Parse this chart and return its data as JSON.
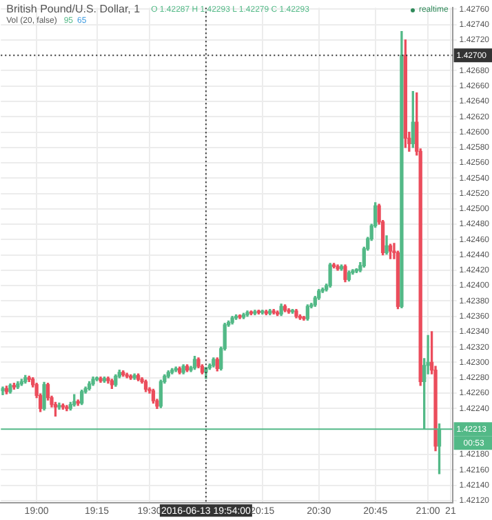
{
  "chart_data": {
    "type": "candlestick",
    "title": "British Pound/U.S. Dollar, 1",
    "annotations": [
      "O 1.42287 H 1.42293 L 1.42279 C 1.42293",
      "Vol (20, false)",
      "95",
      "65",
      "realtime",
      "00:53"
    ],
    "categories": [
      null,
      null,
      null,
      null,
      null,
      null,
      null,
      null,
      null,
      "19:00",
      null,
      null,
      null,
      null,
      null,
      null,
      null,
      null,
      null,
      null,
      null,
      null,
      null,
      null,
      null,
      "19:15",
      null,
      null,
      null,
      null,
      null,
      null,
      null,
      null,
      null,
      null,
      null,
      null,
      null,
      "19:30",
      null,
      null,
      null,
      null,
      null,
      null,
      null,
      null,
      null,
      null,
      null,
      null,
      null,
      null,
      "2016-06-13 19:54:00",
      null,
      null,
      null,
      null,
      null,
      null,
      null,
      null,
      null,
      null,
      null,
      null,
      null,
      null,
      "20:15",
      null,
      null,
      null,
      null,
      null,
      null,
      null,
      null,
      null,
      null,
      null,
      null,
      null,
      null,
      "20:30",
      null,
      null,
      null,
      null,
      null,
      null,
      null,
      null,
      null,
      null,
      null,
      null,
      null,
      null,
      "20:45",
      null,
      null,
      null,
      null,
      null,
      null,
      null,
      null,
      null,
      null,
      null,
      null,
      null,
      "21:00",
      null,
      null,
      null,
      null,
      null,
      "21"
    ],
    "ohlc": [
      [
        1.42263,
        1.42268,
        1.42258,
        1.42266
      ],
      [
        1.42266,
        1.42269,
        1.42259,
        1.42262
      ],
      [
        1.42262,
        1.42272,
        1.4226,
        1.4227
      ],
      [
        1.4227,
        1.42273,
        1.42265,
        1.42268
      ],
      [
        1.42268,
        1.42275,
        1.42266,
        1.42272
      ],
      [
        1.42272,
        1.42278,
        1.4227,
        1.42275
      ],
      [
        1.42275,
        1.42283,
        1.42273,
        1.4228
      ],
      [
        1.4228,
        1.42282,
        1.42275,
        1.42278
      ],
      [
        1.42278,
        1.4228,
        1.42268,
        1.42271
      ],
      [
        1.42271,
        1.42273,
        1.42254,
        1.42257
      ],
      [
        1.42257,
        1.42259,
        1.42236,
        1.4224
      ],
      [
        1.4224,
        1.42274,
        1.42238,
        1.42271
      ],
      [
        1.42271,
        1.42273,
        1.42251,
        1.42254
      ],
      [
        1.42254,
        1.42256,
        1.42242,
        1.42245
      ],
      [
        1.42245,
        1.42248,
        1.4223,
        1.42242
      ],
      [
        1.42242,
        1.42247,
        1.42239,
        1.42244
      ],
      [
        1.42244,
        1.42246,
        1.42239,
        1.42242
      ],
      [
        1.42242,
        1.42244,
        1.42237,
        1.4224
      ],
      [
        1.4224,
        1.42248,
        1.42238,
        1.42245
      ],
      [
        1.42245,
        1.42258,
        1.42243,
        1.42249
      ],
      [
        1.42249,
        1.42251,
        1.42244,
        1.42247
      ],
      [
        1.42247,
        1.42264,
        1.42245,
        1.42262
      ],
      [
        1.42262,
        1.42268,
        1.4226,
        1.42266
      ],
      [
        1.42266,
        1.42275,
        1.42264,
        1.42272
      ],
      [
        1.42272,
        1.42281,
        1.4227,
        1.42278
      ],
      [
        1.42278,
        1.42281,
        1.42276,
        1.42279
      ],
      [
        1.42279,
        1.42281,
        1.42274,
        1.42276
      ],
      [
        1.42276,
        1.42281,
        1.42274,
        1.42279
      ],
      [
        1.42279,
        1.42281,
        1.42273,
        1.42276
      ],
      [
        1.42276,
        1.42278,
        1.42266,
        1.42271
      ],
      [
        1.42271,
        1.42284,
        1.42269,
        1.42282
      ],
      [
        1.42282,
        1.4229,
        1.4228,
        1.42287
      ],
      [
        1.42287,
        1.42289,
        1.42282,
        1.42284
      ],
      [
        1.42284,
        1.42286,
        1.4228,
        1.42282
      ],
      [
        1.42282,
        1.42284,
        1.42278,
        1.4228
      ],
      [
        1.4228,
        1.42285,
        1.42278,
        1.42283
      ],
      [
        1.42283,
        1.42285,
        1.42276,
        1.42278
      ],
      [
        1.42278,
        1.4228,
        1.42273,
        1.42275
      ],
      [
        1.42275,
        1.42277,
        1.42262,
        1.42265
      ],
      [
        1.42265,
        1.42267,
        1.4226,
        1.42263
      ],
      [
        1.42263,
        1.42265,
        1.42247,
        1.4225
      ],
      [
        1.4225,
        1.42252,
        1.4224,
        1.42243
      ],
      [
        1.42243,
        1.42277,
        1.42241,
        1.42275
      ],
      [
        1.42275,
        1.42284,
        1.42273,
        1.42282
      ],
      [
        1.42282,
        1.42289,
        1.4228,
        1.42287
      ],
      [
        1.42287,
        1.42292,
        1.42285,
        1.4229
      ],
      [
        1.4229,
        1.42294,
        1.42288,
        1.42292
      ],
      [
        1.42292,
        1.42294,
        1.42285,
        1.42287
      ],
      [
        1.42287,
        1.42297,
        1.42285,
        1.42295
      ],
      [
        1.42295,
        1.42297,
        1.42288,
        1.4229
      ],
      [
        1.4229,
        1.42295,
        1.42288,
        1.42293
      ],
      [
        1.42293,
        1.42308,
        1.42291,
        1.42304
      ],
      [
        1.42304,
        1.42306,
        1.42293,
        1.42295
      ],
      [
        1.42295,
        1.42297,
        1.42285,
        1.42287
      ],
      [
        1.42287,
        1.42293,
        1.42279,
        1.42293
      ],
      [
        1.42293,
        1.42298,
        1.42291,
        1.42296
      ],
      [
        1.42296,
        1.42306,
        1.42294,
        1.42304
      ],
      [
        1.42304,
        1.42306,
        1.42289,
        1.42292
      ],
      [
        1.42292,
        1.4232,
        1.4229,
        1.42318
      ],
      [
        1.42318,
        1.42351,
        1.42316,
        1.42349
      ],
      [
        1.42349,
        1.42354,
        1.42347,
        1.42352
      ],
      [
        1.42352,
        1.4236,
        1.4235,
        1.42358
      ],
      [
        1.42358,
        1.42362,
        1.42356,
        1.4236
      ],
      [
        1.4236,
        1.42362,
        1.42357,
        1.42359
      ],
      [
        1.42359,
        1.42364,
        1.42357,
        1.42362
      ],
      [
        1.42362,
        1.42367,
        1.4236,
        1.42365
      ],
      [
        1.42365,
        1.42367,
        1.42362,
        1.42364
      ],
      [
        1.42364,
        1.42368,
        1.42362,
        1.42366
      ],
      [
        1.42366,
        1.42368,
        1.42363,
        1.42365
      ],
      [
        1.42365,
        1.42368,
        1.42363,
        1.42366
      ],
      [
        1.42366,
        1.42368,
        1.42362,
        1.42364
      ],
      [
        1.42364,
        1.42369,
        1.42362,
        1.42367
      ],
      [
        1.42367,
        1.42369,
        1.42363,
        1.42365
      ],
      [
        1.42365,
        1.42367,
        1.42361,
        1.42363
      ],
      [
        1.42363,
        1.42376,
        1.42361,
        1.42373
      ],
      [
        1.42373,
        1.42375,
        1.42366,
        1.42368
      ],
      [
        1.42368,
        1.4237,
        1.42364,
        1.42366
      ],
      [
        1.42366,
        1.42369,
        1.42364,
        1.42367
      ],
      [
        1.42367,
        1.42369,
        1.42358,
        1.4236
      ],
      [
        1.4236,
        1.42362,
        1.42356,
        1.42358
      ],
      [
        1.42358,
        1.4236,
        1.42355,
        1.42357
      ],
      [
        1.42357,
        1.42375,
        1.42355,
        1.42373
      ],
      [
        1.42373,
        1.42377,
        1.42371,
        1.42375
      ],
      [
        1.42375,
        1.42386,
        1.42373,
        1.42384
      ],
      [
        1.42384,
        1.42395,
        1.42382,
        1.42393
      ],
      [
        1.42393,
        1.42397,
        1.42391,
        1.42395
      ],
      [
        1.42395,
        1.42402,
        1.42393,
        1.424
      ],
      [
        1.424,
        1.42429,
        1.42398,
        1.42427
      ],
      [
        1.42427,
        1.42429,
        1.42423,
        1.42425
      ],
      [
        1.42425,
        1.42427,
        1.4242,
        1.42422
      ],
      [
        1.42422,
        1.42427,
        1.4242,
        1.42425
      ],
      [
        1.42425,
        1.42427,
        1.42405,
        1.42408
      ],
      [
        1.42408,
        1.42419,
        1.42406,
        1.42417
      ],
      [
        1.42417,
        1.42421,
        1.42415,
        1.42419
      ],
      [
        1.42419,
        1.42422,
        1.42417,
        1.4242
      ],
      [
        1.4242,
        1.4243,
        1.42418,
        1.42426
      ],
      [
        1.42426,
        1.4245,
        1.42424,
        1.42448
      ],
      [
        1.42448,
        1.42463,
        1.42446,
        1.42461
      ],
      [
        1.42461,
        1.4248,
        1.42459,
        1.42478
      ],
      [
        1.42478,
        1.42508,
        1.42476,
        1.42504
      ],
      [
        1.42504,
        1.42506,
        1.4248,
        1.42483
      ],
      [
        1.42483,
        1.42485,
        1.4244,
        1.42443
      ],
      [
        1.42443,
        1.42465,
        1.42441,
        1.42452
      ],
      [
        1.42452,
        1.42454,
        1.42435,
        1.42445
      ],
      [
        1.42445,
        1.42455,
        1.42435,
        1.42443
      ],
      [
        1.42443,
        1.42445,
        1.4237,
        1.42373
      ],
      [
        1.42373,
        1.42731,
        1.42371,
        1.427
      ],
      [
        1.427,
        1.4272,
        1.4258,
        1.42592
      ],
      [
        1.42592,
        1.426,
        1.42575,
        1.42585
      ],
      [
        1.42585,
        1.42653,
        1.4258,
        1.42613
      ],
      [
        1.42613,
        1.42651,
        1.4257,
        1.42575
      ],
      [
        1.42575,
        1.42578,
        1.4227,
        1.42275
      ],
      [
        1.42275,
        1.42305,
        1.42214,
        1.42296
      ],
      [
        1.42296,
        1.42335,
        1.42285,
        1.423
      ],
      [
        1.423,
        1.4234,
        1.42285,
        1.4229
      ],
      [
        1.4229,
        1.42295,
        1.42185,
        1.42191
      ],
      [
        1.42191,
        1.4222,
        1.42155,
        1.42213
      ],
      null,
      null,
      null
    ],
    "colors": [
      "#53b987",
      "#eb4d5c",
      "#53b987",
      "#eb4d5c",
      "#53b987",
      "#53b987",
      "#53b987",
      "#eb4d5c",
      "#eb4d5c",
      "#eb4d5c",
      "#eb4d5c",
      "#53b987",
      "#eb4d5c",
      "#eb4d5c",
      "#eb4d5c",
      "#53b987",
      "#eb4d5c",
      "#eb4d5c",
      "#53b987",
      "#53b987",
      "#eb4d5c",
      "#53b987",
      "#53b987",
      "#53b987",
      "#53b987",
      "#53b987",
      "#eb4d5c",
      "#53b987",
      "#eb4d5c",
      "#eb4d5c",
      "#53b987",
      "#53b987",
      "#eb4d5c",
      "#eb4d5c",
      "#eb4d5c",
      "#53b987",
      "#eb4d5c",
      "#eb4d5c",
      "#eb4d5c",
      "#eb4d5c",
      "#eb4d5c",
      "#eb4d5c",
      "#53b987",
      "#53b987",
      "#53b987",
      "#53b987",
      "#53b987",
      "#eb4d5c",
      "#53b987",
      "#eb4d5c",
      "#53b987",
      "#53b987",
      "#eb4d5c",
      "#eb4d5c",
      "#53b987",
      "#53b987",
      "#53b987",
      "#eb4d5c",
      "#53b987",
      "#53b987",
      "#53b987",
      "#53b987",
      "#53b987",
      "#eb4d5c",
      "#53b987",
      "#53b987",
      "#eb4d5c",
      "#53b987",
      "#eb4d5c",
      "#53b987",
      "#eb4d5c",
      "#53b987",
      "#eb4d5c",
      "#eb4d5c",
      "#53b987",
      "#eb4d5c",
      "#eb4d5c",
      "#53b987",
      "#eb4d5c",
      "#eb4d5c",
      "#eb4d5c",
      "#53b987",
      "#53b987",
      "#53b987",
      "#53b987",
      "#53b987",
      "#53b987",
      "#53b987",
      "#eb4d5c",
      "#eb4d5c",
      "#53b987",
      "#eb4d5c",
      "#53b987",
      "#53b987",
      "#53b987",
      "#53b987",
      "#53b987",
      "#53b987",
      "#53b987",
      "#53b987",
      "#eb4d5c",
      "#eb4d5c",
      "#53b987",
      "#eb4d5c",
      "#eb4d5c",
      "#eb4d5c",
      "#53b987",
      "#eb4d5c",
      "#eb4d5c",
      "#53b987",
      "#eb4d5c",
      "#eb4d5c",
      "#53b987",
      "#53b987",
      "#eb4d5c",
      "#eb4d5c",
      "#53b987",
      null,
      null,
      null
    ],
    "ylim": [
      1.42117,
      1.42762
    ],
    "yticks": [
      {
        "value": 1.4212,
        "label": "1.42120"
      },
      {
        "value": 1.4214,
        "label": "1.42140"
      },
      {
        "value": 1.4216,
        "label": "1.42160"
      },
      {
        "value": 1.4218,
        "label": "1.42180"
      },
      {
        "value": 1.4224,
        "label": "1.42240"
      },
      {
        "value": 1.4226,
        "label": "1.42260"
      },
      {
        "value": 1.4228,
        "label": "1.42280"
      },
      {
        "value": 1.423,
        "label": "1.42300"
      },
      {
        "value": 1.4232,
        "label": "1.42320"
      },
      {
        "value": 1.4234,
        "label": "1.42340"
      },
      {
        "value": 1.4236,
        "label": "1.42360"
      },
      {
        "value": 1.4238,
        "label": "1.42380"
      },
      {
        "value": 1.424,
        "label": "1.42400"
      },
      {
        "value": 1.4242,
        "label": "1.42420"
      },
      {
        "value": 1.4244,
        "label": "1.42440"
      },
      {
        "value": 1.4246,
        "label": "1.42460"
      },
      {
        "value": 1.4248,
        "label": "1.42480"
      },
      {
        "value": 1.425,
        "label": "1.42500"
      },
      {
        "value": 1.4252,
        "label": "1.42520"
      },
      {
        "value": 1.4254,
        "label": "1.42540"
      },
      {
        "value": 1.4256,
        "label": "1.42560"
      },
      {
        "value": 1.4258,
        "label": "1.42580"
      },
      {
        "value": 1.426,
        "label": "1.42600"
      },
      {
        "value": 1.4262,
        "label": "1.42620"
      },
      {
        "value": 1.4264,
        "label": "1.42640"
      },
      {
        "value": 1.4266,
        "label": "1.42660"
      },
      {
        "value": 1.4268,
        "label": "1.42680"
      },
      {
        "value": 1.4272,
        "label": "1.42720"
      },
      {
        "value": 1.4274,
        "label": "1.42740"
      },
      {
        "value": 1.4276,
        "label": "1.42760"
      }
    ],
    "ref_lines": [
      {
        "axis": "y",
        "value": 1.427,
        "label": "1.42700",
        "color": "#333333",
        "line_style": "dotted"
      },
      {
        "axis": "y",
        "value": 1.42213,
        "label": "1.42213",
        "color": "#53b987",
        "line_style": "solid"
      },
      {
        "axis": "x",
        "value": "2016-06-13 19:54:00",
        "label": null,
        "color": "#333333",
        "line_style": "dotted"
      }
    ],
    "grid": true
  }
}
